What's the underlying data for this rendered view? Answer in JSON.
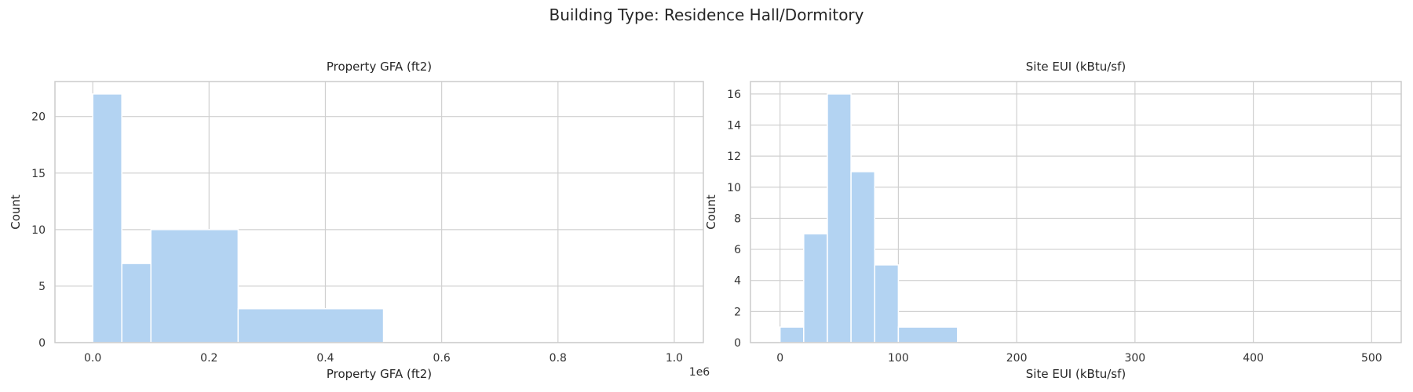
{
  "figure": {
    "suptitle": "Building Type: Residence Hall/Dormitory"
  },
  "colors": {
    "bar_fill": "#b3d3f2",
    "bar_edge": "#ffffff",
    "grid": "#d0d0d0",
    "frame": "#cccccc"
  },
  "chart_data": [
    {
      "type": "bar",
      "subtype": "histogram",
      "title": "Property GFA (ft2)",
      "xlabel": "Property GFA (ft2)",
      "ylabel": "Count",
      "xlim": [
        -65000,
        1050000
      ],
      "ylim": [
        0,
        23.1
      ],
      "xticks": [
        0,
        200000,
        400000,
        600000,
        800000,
        1000000
      ],
      "xtick_labels": [
        "0.0",
        "0.2",
        "0.4",
        "0.6",
        "0.8",
        "1.0"
      ],
      "yticks": [
        0,
        5,
        10,
        15,
        20
      ],
      "ytick_labels": [
        "0",
        "5",
        "10",
        "15",
        "20"
      ],
      "offset_label": "1e6",
      "grid": true,
      "bins": [
        {
          "x0": 0,
          "x1": 50000,
          "count": 22
        },
        {
          "x0": 50000,
          "x1": 100000,
          "count": 7
        },
        {
          "x0": 100000,
          "x1": 250000,
          "count": 10
        },
        {
          "x0": 250000,
          "x1": 500000,
          "count": 3
        },
        {
          "x0": 500000,
          "x1": 1000000,
          "count": 0
        }
      ]
    },
    {
      "type": "bar",
      "subtype": "histogram",
      "title": "Site EUI (kBtu/sf)",
      "xlabel": "Site EUI (kBtu/sf)",
      "ylabel": "Count",
      "xlim": [
        -25,
        525
      ],
      "ylim": [
        0,
        16.8
      ],
      "xticks": [
        0,
        100,
        200,
        300,
        400,
        500
      ],
      "xtick_labels": [
        "0",
        "100",
        "200",
        "300",
        "400",
        "500"
      ],
      "yticks": [
        0,
        2,
        4,
        6,
        8,
        10,
        12,
        14,
        16
      ],
      "ytick_labels": [
        "0",
        "2",
        "4",
        "6",
        "8",
        "10",
        "12",
        "14",
        "16"
      ],
      "grid": true,
      "bins": [
        {
          "x0": 0,
          "x1": 20,
          "count": 1
        },
        {
          "x0": 20,
          "x1": 40,
          "count": 7
        },
        {
          "x0": 40,
          "x1": 60,
          "count": 16
        },
        {
          "x0": 60,
          "x1": 80,
          "count": 11
        },
        {
          "x0": 80,
          "x1": 100,
          "count": 5
        },
        {
          "x0": 100,
          "x1": 150,
          "count": 1
        },
        {
          "x0": 150,
          "x1": 200,
          "count": 0
        },
        {
          "x0": 200,
          "x1": 300,
          "count": 0
        },
        {
          "x0": 300,
          "x1": 400,
          "count": 0
        },
        {
          "x0": 400,
          "x1": 500,
          "count": 0
        }
      ]
    }
  ]
}
